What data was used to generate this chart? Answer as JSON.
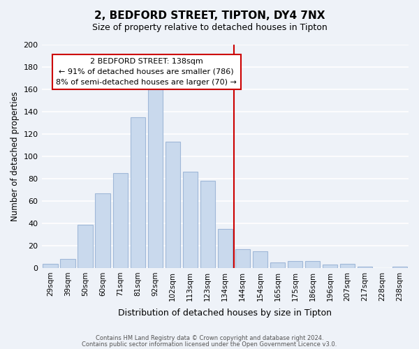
{
  "title": "2, BEDFORD STREET, TIPTON, DY4 7NX",
  "subtitle": "Size of property relative to detached houses in Tipton",
  "xlabel": "Distribution of detached houses by size in Tipton",
  "ylabel": "Number of detached properties",
  "bar_labels": [
    "29sqm",
    "39sqm",
    "50sqm",
    "60sqm",
    "71sqm",
    "81sqm",
    "92sqm",
    "102sqm",
    "113sqm",
    "123sqm",
    "134sqm",
    "144sqm",
    "154sqm",
    "165sqm",
    "175sqm",
    "186sqm",
    "196sqm",
    "207sqm",
    "217sqm",
    "228sqm",
    "238sqm"
  ],
  "bar_values": [
    4,
    8,
    39,
    67,
    85,
    135,
    160,
    113,
    86,
    78,
    35,
    17,
    15,
    5,
    6,
    6,
    3,
    4,
    1,
    0,
    1
  ],
  "bar_color": "#c9d9ed",
  "bar_edge_color": "#a0b8d8",
  "vline_x": 10.5,
  "vline_color": "#cc0000",
  "ylim": [
    0,
    200
  ],
  "yticks": [
    0,
    20,
    40,
    60,
    80,
    100,
    120,
    140,
    160,
    180,
    200
  ],
  "annotation_title": "2 BEDFORD STREET: 138sqm",
  "annotation_line1": "← 91% of detached houses are smaller (786)",
  "annotation_line2": "8% of semi-detached houses are larger (70) →",
  "annotation_box_color": "#ffffff",
  "annotation_box_edge": "#cc0000",
  "footer1": "Contains HM Land Registry data © Crown copyright and database right 2024.",
  "footer2": "Contains public sector information licensed under the Open Government Licence v3.0.",
  "background_color": "#eef2f8",
  "grid_color": "#ffffff"
}
